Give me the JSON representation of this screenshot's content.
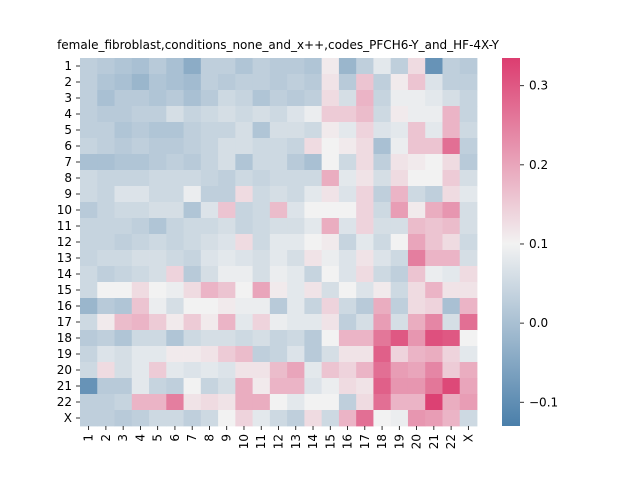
{
  "chart_data": {
    "type": "heatmap",
    "title": "female_fibroblast,conditions_none_and_x++,codes_PFCH6-Y_and_HF-4X-Y",
    "xlabel": "",
    "ylabel": "",
    "row_labels": [
      "1",
      "2",
      "3",
      "4",
      "5",
      "6",
      "7",
      "8",
      "9",
      "10",
      "11",
      "12",
      "13",
      "14",
      "15",
      "16",
      "17",
      "18",
      "19",
      "20",
      "21",
      "22",
      "X"
    ],
    "col_labels": [
      "1",
      "2",
      "3",
      "4",
      "5",
      "6",
      "7",
      "8",
      "9",
      "10",
      "11",
      "12",
      "13",
      "14",
      "15",
      "16",
      "17",
      "18",
      "19",
      "20",
      "21",
      "22",
      "X"
    ],
    "colorbar": {
      "vmin": -0.13,
      "vmax": 0.335,
      "center": 0.1,
      "ticks": [
        -0.1,
        0.0,
        0.1,
        0.2,
        0.3
      ],
      "tick_labels": [
        "−0.1",
        "0.0",
        "0.1",
        "0.2",
        "0.3"
      ],
      "colormap": "diverging blue-white-pink",
      "low_color": "#4a7faa",
      "mid_color": "#f2f2f2",
      "high_color": "#dc3d70"
    },
    "matrix": [
      [
        0.03,
        0.02,
        0.01,
        0.0,
        0.02,
        0.0,
        -0.04,
        0.03,
        0.03,
        0.01,
        0.03,
        0.02,
        0.02,
        0.01,
        0.11,
        -0.02,
        0.03,
        0.08,
        0.03,
        0.13,
        -0.09,
        0.03,
        0.02
      ],
      [
        0.03,
        0.01,
        0.0,
        -0.02,
        0.01,
        0.0,
        -0.01,
        0.03,
        0.02,
        0.03,
        0.03,
        0.02,
        0.03,
        0.02,
        0.12,
        0.02,
        0.16,
        0.03,
        0.11,
        0.16,
        0.07,
        0.03,
        0.03
      ],
      [
        0.03,
        0.0,
        0.02,
        0.02,
        0.01,
        0.02,
        0.0,
        0.02,
        0.05,
        0.04,
        0.01,
        0.03,
        0.02,
        0.03,
        0.13,
        0.06,
        0.18,
        0.04,
        0.09,
        0.09,
        0.08,
        0.06,
        0.04
      ],
      [
        0.03,
        0.02,
        0.02,
        0.03,
        0.03,
        0.06,
        0.04,
        0.05,
        0.06,
        0.05,
        0.06,
        0.05,
        0.07,
        0.09,
        0.15,
        0.15,
        0.17,
        0.05,
        0.11,
        0.09,
        0.09,
        0.18,
        0.04
      ],
      [
        0.03,
        0.03,
        0.01,
        0.02,
        0.01,
        0.01,
        0.03,
        0.04,
        0.04,
        0.06,
        0.01,
        0.06,
        0.06,
        0.05,
        0.11,
        0.08,
        0.14,
        0.07,
        0.08,
        0.16,
        0.08,
        0.18,
        0.05
      ],
      [
        0.04,
        0.03,
        0.02,
        0.03,
        0.02,
        0.02,
        0.03,
        0.04,
        0.06,
        0.06,
        0.05,
        0.05,
        0.04,
        0.13,
        0.1,
        0.11,
        0.13,
        0.0,
        0.09,
        0.16,
        0.16,
        0.27,
        0.03
      ],
      [
        0.0,
        0.0,
        0.01,
        0.01,
        0.02,
        0.03,
        0.02,
        0.04,
        0.06,
        0.01,
        0.05,
        0.05,
        0.02,
        0.0,
        0.1,
        0.05,
        0.13,
        0.03,
        0.12,
        0.11,
        0.1,
        0.13,
        0.02
      ],
      [
        0.05,
        0.04,
        0.04,
        0.04,
        0.05,
        0.05,
        0.05,
        0.04,
        0.03,
        0.05,
        0.04,
        0.05,
        0.05,
        0.05,
        0.19,
        0.08,
        0.12,
        0.06,
        0.13,
        0.1,
        0.1,
        0.15,
        0.06
      ],
      [
        0.05,
        0.04,
        0.07,
        0.07,
        0.05,
        0.05,
        0.09,
        0.03,
        0.03,
        0.13,
        0.05,
        0.06,
        0.05,
        0.08,
        0.12,
        0.07,
        0.14,
        0.03,
        0.18,
        0.05,
        0.03,
        0.13,
        0.08
      ],
      [
        0.02,
        0.04,
        0.05,
        0.05,
        0.06,
        0.06,
        0.01,
        0.07,
        0.16,
        0.04,
        0.05,
        0.17,
        0.07,
        0.1,
        0.1,
        0.1,
        0.14,
        0.05,
        0.21,
        0.11,
        0.19,
        0.22,
        0.06
      ],
      [
        0.04,
        0.04,
        0.04,
        0.03,
        0.01,
        0.04,
        0.05,
        0.05,
        0.06,
        0.04,
        0.05,
        0.06,
        0.06,
        0.08,
        0.19,
        0.07,
        0.14,
        0.06,
        0.06,
        0.17,
        0.16,
        0.17,
        0.06
      ],
      [
        0.04,
        0.04,
        0.03,
        0.04,
        0.05,
        0.04,
        0.05,
        0.06,
        0.07,
        0.13,
        0.05,
        0.08,
        0.08,
        0.1,
        0.11,
        0.04,
        0.08,
        0.05,
        0.1,
        0.2,
        0.16,
        0.13,
        0.05
      ],
      [
        0.04,
        0.05,
        0.05,
        0.06,
        0.06,
        0.05,
        0.04,
        0.07,
        0.08,
        0.07,
        0.06,
        0.08,
        0.06,
        0.12,
        0.09,
        0.07,
        0.12,
        0.07,
        0.05,
        0.25,
        0.18,
        0.18,
        0.06
      ],
      [
        0.05,
        0.03,
        0.04,
        0.05,
        0.06,
        0.14,
        0.02,
        0.06,
        0.09,
        0.09,
        0.06,
        0.09,
        0.08,
        0.04,
        0.1,
        0.07,
        0.13,
        0.05,
        0.03,
        0.16,
        0.09,
        0.08,
        0.13
      ],
      [
        0.05,
        0.1,
        0.1,
        0.13,
        0.1,
        0.09,
        0.13,
        0.18,
        0.16,
        0.1,
        0.2,
        0.11,
        0.08,
        0.12,
        0.06,
        0.1,
        0.07,
        0.11,
        0.05,
        0.13,
        0.18,
        0.12,
        0.12
      ],
      [
        -0.02,
        0.02,
        0.01,
        0.16,
        0.09,
        0.06,
        0.1,
        0.1,
        0.11,
        0.09,
        0.09,
        0.02,
        0.08,
        0.04,
        0.14,
        0.05,
        0.02,
        0.19,
        0.03,
        0.13,
        0.14,
        0.0,
        0.18
      ],
      [
        0.05,
        0.11,
        0.17,
        0.18,
        0.15,
        0.11,
        0.15,
        0.11,
        0.18,
        0.08,
        0.14,
        0.09,
        0.08,
        0.08,
        0.12,
        0.03,
        0.06,
        0.21,
        0.06,
        0.19,
        0.24,
        0.06,
        0.27
      ],
      [
        0.02,
        0.03,
        0.01,
        0.05,
        0.05,
        0.01,
        0.05,
        0.06,
        0.06,
        0.05,
        0.06,
        0.04,
        0.05,
        0.02,
        0.1,
        0.18,
        0.18,
        0.26,
        0.3,
        0.22,
        0.31,
        0.3,
        0.1
      ],
      [
        0.04,
        0.07,
        0.06,
        0.08,
        0.08,
        0.11,
        0.11,
        0.12,
        0.15,
        0.17,
        0.03,
        0.04,
        0.07,
        0.02,
        0.06,
        0.12,
        0.12,
        0.29,
        0.14,
        0.18,
        0.19,
        0.14,
        0.08
      ],
      [
        0.05,
        0.13,
        0.06,
        0.08,
        0.15,
        0.08,
        0.07,
        0.08,
        0.07,
        0.12,
        0.12,
        0.17,
        0.2,
        0.08,
        0.16,
        0.14,
        0.18,
        0.27,
        0.21,
        0.2,
        0.24,
        0.15,
        0.19
      ],
      [
        -0.09,
        0.02,
        0.02,
        0.08,
        0.04,
        0.03,
        0.1,
        0.04,
        0.06,
        0.19,
        0.11,
        0.18,
        0.18,
        0.07,
        0.09,
        0.13,
        0.12,
        0.29,
        0.22,
        0.22,
        0.26,
        0.32,
        0.2
      ],
      [
        0.03,
        0.03,
        0.04,
        0.18,
        0.18,
        0.25,
        0.12,
        0.13,
        0.12,
        0.19,
        0.19,
        0.1,
        0.08,
        0.1,
        0.1,
        0.03,
        0.13,
        0.27,
        0.18,
        0.18,
        0.33,
        0.19,
        0.21
      ],
      [
        0.03,
        0.03,
        0.02,
        0.03,
        0.05,
        0.05,
        0.03,
        0.05,
        0.1,
        0.14,
        0.08,
        0.05,
        0.03,
        0.13,
        0.05,
        0.18,
        0.27,
        0.1,
        0.09,
        0.22,
        0.21,
        0.18,
        0.05
      ]
    ]
  }
}
